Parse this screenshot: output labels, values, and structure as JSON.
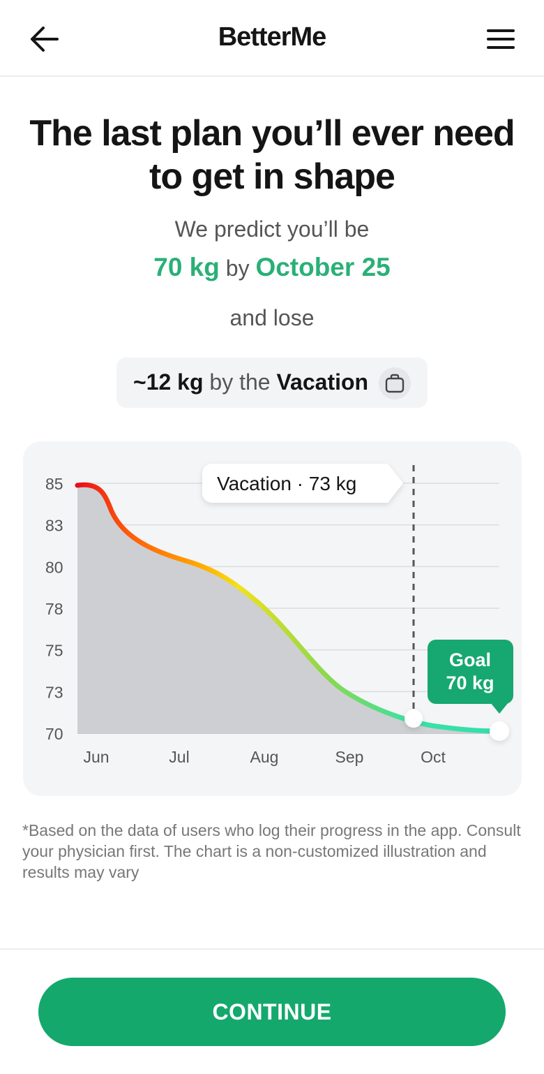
{
  "header": {
    "logo": "BetterMe",
    "back_icon": "arrow-left-icon",
    "menu_icon": "hamburger-menu-icon"
  },
  "headline": "The last plan you’ll ever need to get in shape",
  "prediction": {
    "intro": "We predict you’ll be",
    "weight": "70 kg",
    "by": "by",
    "date": "October 25",
    "lose_text": "and lose"
  },
  "event": {
    "amount": "~12 kg",
    "by_the": "by the",
    "name": "Vacation",
    "icon": "suitcase-icon"
  },
  "chart_data": {
    "type": "area",
    "y_ticks": [
      "85",
      "83",
      "80",
      "78",
      "75",
      "73",
      "70"
    ],
    "x_labels": [
      "Jun",
      "Jul",
      "Aug",
      "Sep",
      "Oct"
    ],
    "series": [
      {
        "x": [
          "Jun",
          "Jul",
          "Aug",
          "Sep",
          "Oct"
        ],
        "values": [
          85,
          80.5,
          77.5,
          72.5,
          70.2
        ]
      }
    ],
    "vacation_label": "Vacation · 73 kg",
    "goal_label_line1": "Goal",
    "goal_label_line2": "70 kg",
    "grid": true,
    "gradient_colors": [
      "#e80d1a",
      "#ff8a00",
      "#f2e21a",
      "#8fd84a",
      "#2fe0b0"
    ],
    "goal_color": "#16a870"
  },
  "disclaimer": "*Based on the data of users who log their progress in the app. Consult your physician first. The chart is a non-customized illustration and results may vary",
  "continue_label": "CONTINUE",
  "colors": {
    "accent": "#2ab077",
    "button": "#14a86d"
  }
}
